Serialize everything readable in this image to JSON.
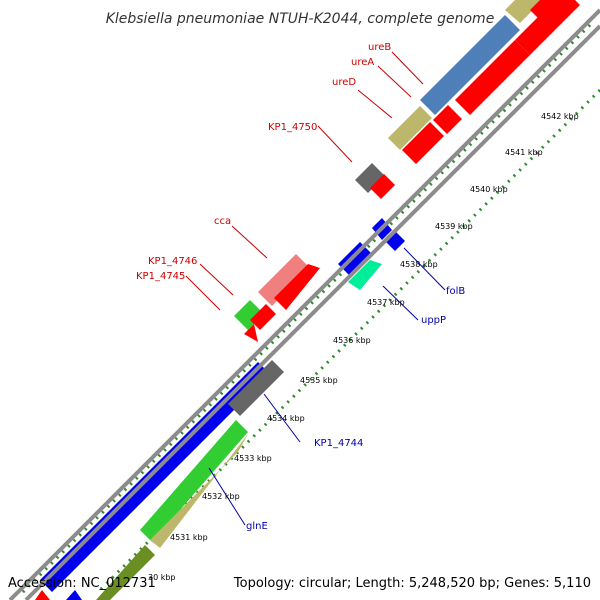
{
  "title": "Klebsiella pneumoniae NTUH-K2044, complete genome",
  "accession": "Accession: NC_012731",
  "summary": "Topology: circular; Length: 5,248,520 bp; Genes: 5,110",
  "colors": {
    "backbone": "#8c8c8c",
    "tick_dots": "#2e8b2e",
    "forward_label": "#cc0000",
    "reverse_label": "#0000aa"
  },
  "ticks": [
    {
      "label": "4542 kbp"
    },
    {
      "label": "4541 kbp"
    },
    {
      "label": "4540 kbp"
    },
    {
      "label": "4539 kbp"
    },
    {
      "label": "4538 kbp"
    },
    {
      "label": "4537 kbp"
    },
    {
      "label": "4536 kbp"
    },
    {
      "label": "4535 kbp"
    },
    {
      "label": "4534 kbp"
    },
    {
      "label": "4533 kbp"
    },
    {
      "label": "4532 kbp"
    },
    {
      "label": "4531 kbp"
    },
    {
      "label": "30 kbp"
    }
  ],
  "labels": [
    {
      "text": "ureB",
      "strand": "forward"
    },
    {
      "text": "ureA",
      "strand": "forward"
    },
    {
      "text": "ureD",
      "strand": "forward"
    },
    {
      "text": "KP1_4750",
      "strand": "forward"
    },
    {
      "text": "cca",
      "strand": "forward"
    },
    {
      "text": "KP1_4746",
      "strand": "forward"
    },
    {
      "text": "KP1_4745",
      "strand": "forward"
    },
    {
      "text": "folB",
      "strand": "reverse"
    },
    {
      "text": "uppP",
      "strand": "reverse"
    },
    {
      "text": "KP1_4744",
      "strand": "reverse"
    },
    {
      "text": "glnE",
      "strand": "reverse"
    }
  ]
}
